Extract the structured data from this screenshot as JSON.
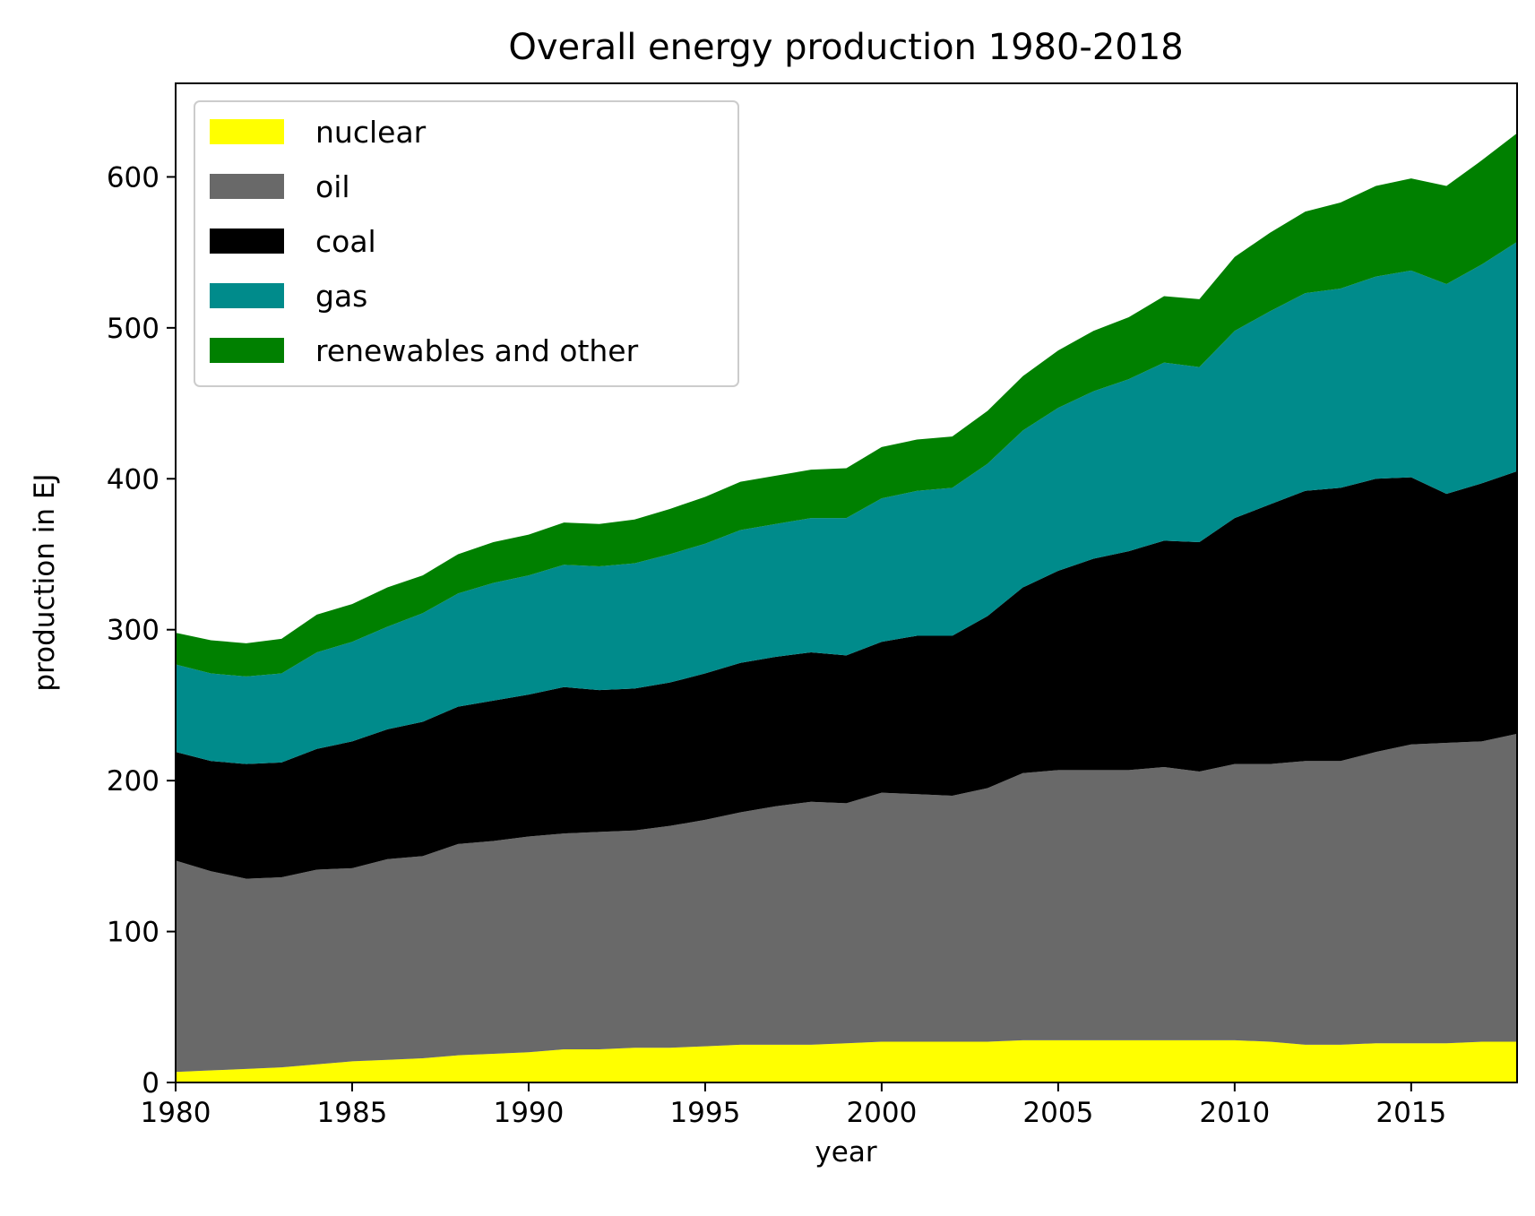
{
  "chart_data": {
    "type": "area",
    "stacked": true,
    "title": "Overall energy production 1980-2018",
    "xlabel": "year",
    "ylabel": "production in EJ",
    "xlim": [
      1980,
      2018
    ],
    "ylim": [
      0,
      662
    ],
    "xticks": [
      1980,
      1985,
      1990,
      1995,
      2000,
      2005,
      2010,
      2015
    ],
    "yticks": [
      0,
      100,
      200,
      300,
      400,
      500,
      600
    ],
    "grid": false,
    "legend_position": "top-left",
    "x": [
      1980,
      1981,
      1982,
      1983,
      1984,
      1985,
      1986,
      1987,
      1988,
      1989,
      1990,
      1991,
      1992,
      1993,
      1994,
      1995,
      1996,
      1997,
      1998,
      1999,
      2000,
      2001,
      2002,
      2003,
      2004,
      2005,
      2006,
      2007,
      2008,
      2009,
      2010,
      2011,
      2012,
      2013,
      2014,
      2015,
      2016,
      2017,
      2018
    ],
    "series": [
      {
        "name": "nuclear",
        "color": "#ffff00",
        "values": [
          7,
          8,
          9,
          10,
          12,
          14,
          15,
          16,
          18,
          19,
          20,
          22,
          22,
          23,
          23,
          24,
          25,
          25,
          25,
          26,
          27,
          27,
          27,
          27,
          28,
          28,
          28,
          28,
          28,
          28,
          28,
          27,
          25,
          25,
          26,
          26,
          26,
          27,
          27
        ]
      },
      {
        "name": "oil",
        "color": "#696969",
        "values": [
          140,
          132,
          126,
          126,
          129,
          128,
          133,
          134,
          140,
          141,
          143,
          143,
          144,
          144,
          147,
          150,
          154,
          158,
          161,
          159,
          165,
          164,
          163,
          168,
          177,
          179,
          179,
          179,
          181,
          178,
          183,
          184,
          188,
          188,
          193,
          198,
          199,
          199,
          204
        ]
      },
      {
        "name": "coal",
        "color": "#000000",
        "values": [
          72,
          73,
          76,
          76,
          80,
          84,
          86,
          89,
          91,
          93,
          94,
          97,
          94,
          94,
          95,
          97,
          99,
          99,
          99,
          98,
          100,
          105,
          106,
          114,
          123,
          132,
          140,
          145,
          150,
          152,
          163,
          172,
          179,
          181,
          181,
          177,
          165,
          171,
          174
        ]
      },
      {
        "name": "gas",
        "color": "#008b8b",
        "values": [
          58,
          58,
          58,
          59,
          64,
          66,
          68,
          72,
          75,
          78,
          79,
          81,
          82,
          83,
          85,
          86,
          88,
          88,
          89,
          91,
          95,
          96,
          98,
          101,
          104,
          108,
          111,
          114,
          118,
          116,
          124,
          128,
          131,
          132,
          134,
          137,
          139,
          145,
          152
        ]
      },
      {
        "name": "renewables and other",
        "color": "#008000",
        "values": [
          21,
          22,
          22,
          23,
          25,
          25,
          26,
          25,
          26,
          27,
          27,
          28,
          28,
          29,
          30,
          31,
          32,
          32,
          32,
          33,
          34,
          34,
          34,
          35,
          36,
          38,
          40,
          41,
          44,
          45,
          49,
          52,
          54,
          57,
          60,
          61,
          65,
          69,
          72
        ]
      }
    ]
  }
}
